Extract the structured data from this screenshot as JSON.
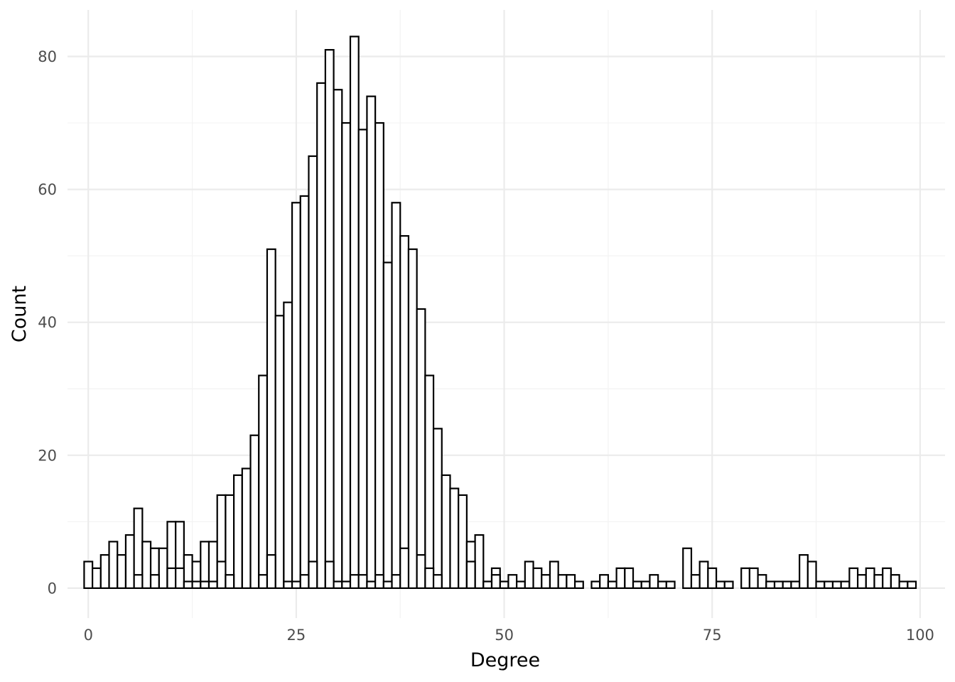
{
  "chart_data": {
    "type": "bar",
    "xlabel": "Degree",
    "ylabel": "Count",
    "xlim": [
      -2.5,
      103
    ],
    "ylim": [
      -4.5,
      87
    ],
    "x_ticks": [
      0,
      25,
      50,
      75,
      100
    ],
    "y_ticks": [
      0,
      20,
      40,
      60,
      80
    ],
    "grid": true,
    "bin_width": 1,
    "series": [
      {
        "x": [
          0,
          1,
          2,
          3,
          4,
          5,
          6,
          7,
          8,
          9,
          10,
          11,
          12,
          13,
          14,
          15,
          16,
          17,
          18,
          19,
          20,
          21,
          22,
          23,
          24,
          25,
          26,
          27,
          28,
          29,
          30,
          31,
          32,
          33,
          34,
          35,
          36,
          37,
          38,
          39,
          40,
          41,
          42,
          43,
          44,
          45,
          46,
          47,
          48,
          49,
          50,
          51,
          52,
          53,
          54,
          55,
          56,
          57,
          58,
          59,
          60,
          61,
          62,
          63,
          64,
          65,
          66,
          67,
          68,
          69,
          70,
          71,
          72,
          73,
          74,
          75,
          76,
          77,
          78,
          79,
          80,
          81,
          82,
          83,
          84,
          85,
          86,
          87,
          88,
          89,
          90,
          91,
          92,
          93,
          94,
          95,
          96,
          97,
          98,
          99
        ],
        "values": [
          4,
          3,
          5,
          7,
          5,
          8,
          12,
          7,
          6,
          6,
          10,
          10,
          5,
          4,
          7,
          7,
          14,
          14,
          17,
          18,
          23,
          32,
          51,
          41,
          43,
          58,
          59,
          65,
          76,
          81,
          75,
          70,
          83,
          69,
          74,
          70,
          49,
          58,
          53,
          51,
          42,
          32,
          24,
          17,
          15,
          14,
          7,
          8,
          1,
          3,
          1,
          2,
          1,
          4,
          3,
          2,
          4,
          2,
          2,
          1,
          0,
          1,
          2,
          1,
          3,
          3,
          1,
          1,
          2,
          1,
          1,
          0,
          6,
          2,
          4,
          3,
          1,
          1,
          0,
          3,
          3,
          2,
          1,
          1,
          1,
          1,
          5,
          4,
          1,
          1,
          1,
          1,
          3,
          2,
          3,
          2,
          3,
          2,
          1,
          1
        ]
      },
      {
        "x": [
          6,
          8,
          10,
          11,
          12,
          13,
          14,
          15,
          16,
          17,
          21,
          22,
          24,
          25,
          26,
          27,
          29,
          30,
          31,
          32,
          33,
          34,
          35,
          36,
          37,
          38,
          40,
          41,
          42,
          46,
          48,
          49
        ],
        "values": [
          2,
          2,
          3,
          3,
          1,
          1,
          1,
          1,
          4,
          2,
          2,
          5,
          1,
          1,
          2,
          4,
          4,
          1,
          1,
          2,
          2,
          1,
          2,
          1,
          2,
          6,
          5,
          3,
          2,
          4,
          1,
          2
        ]
      }
    ]
  }
}
